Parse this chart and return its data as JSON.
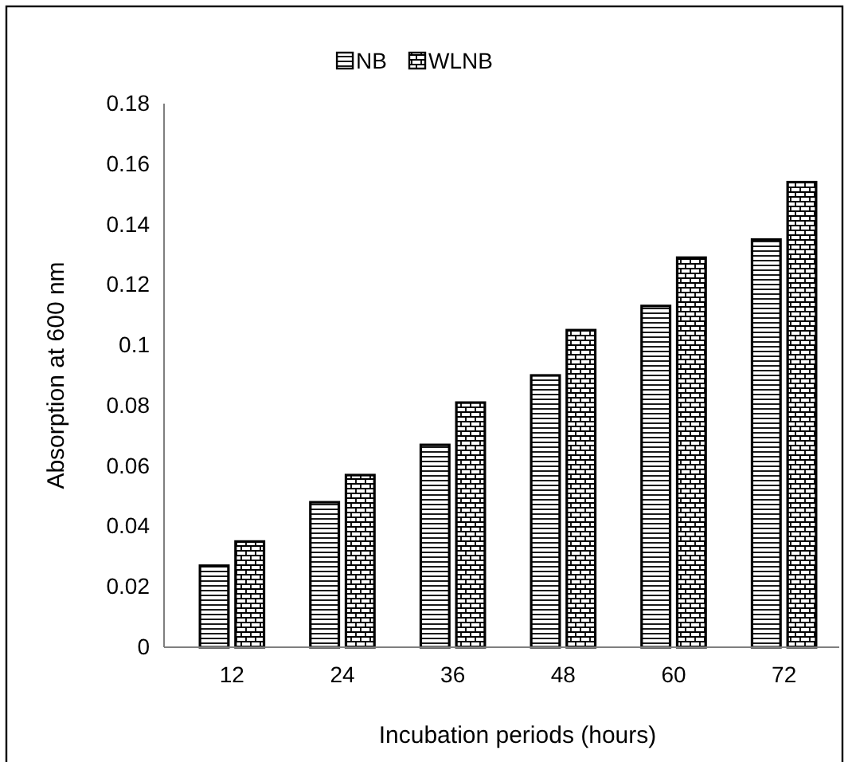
{
  "chart_data": {
    "type": "bar",
    "xlabel": "Incubation periods (hours)",
    "ylabel": "Absorption at 600 nm",
    "categories": [
      "12",
      "24",
      "36",
      "48",
      "60",
      "72"
    ],
    "series": [
      {
        "name": "NB",
        "color": "#000000",
        "values": [
          0.027,
          0.048,
          0.067,
          0.09,
          0.113,
          0.135
        ]
      },
      {
        "name": "WLNB",
        "color": "#000000",
        "values": [
          0.035,
          0.057,
          0.081,
          0.105,
          0.129,
          0.154
        ]
      }
    ],
    "ylim": [
      0,
      0.18
    ],
    "yticks": [
      0,
      0.02,
      0.04,
      0.06,
      0.08,
      0.1,
      0.12,
      0.14,
      0.16,
      0.18
    ],
    "legend": "top"
  }
}
